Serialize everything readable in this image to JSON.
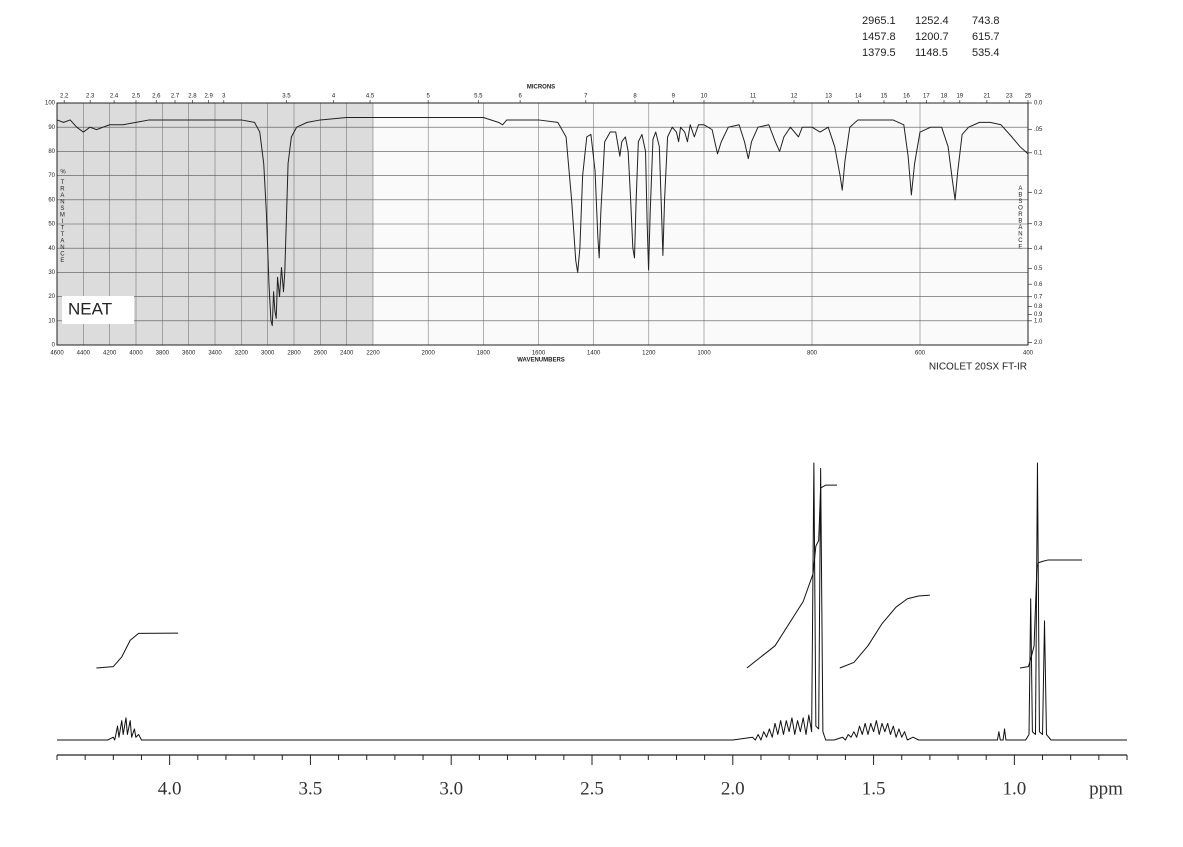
{
  "chart_data": [
    {
      "type": "line",
      "peak_table": [
        [
          2965.1,
          1252.4,
          743.8
        ],
        [
          1457.8,
          1200.7,
          615.7
        ],
        [
          1379.5,
          1148.5,
          535.4
        ]
      ],
      "x2label": "MICRONS",
      "xlabel": "WAVENUMBERS",
      "ylabel_unit": "%",
      "ylabel": "TRANSMITTANCE",
      "y2label": "ABSORBANCE",
      "annotation": "NEAT",
      "instrument": "NICOLET 20SX FT-IR",
      "xlim": [
        4600,
        400
      ],
      "x_scale_breaks": [
        2200,
        1000
      ],
      "xticks": [
        4600,
        4400,
        4200,
        4000,
        3800,
        3600,
        3400,
        3200,
        3000,
        2800,
        2600,
        2400,
        2200,
        2000,
        1800,
        1600,
        1400,
        1200,
        1000,
        800,
        600,
        400
      ],
      "x2ticks": [
        2.2,
        2.3,
        2.4,
        2.5,
        2.6,
        2.7,
        2.8,
        2.9,
        3,
        3.5,
        4,
        4.5,
        5,
        5.5,
        6,
        7,
        8,
        9,
        10,
        11,
        12,
        13,
        14,
        15,
        16,
        17,
        18,
        19,
        21,
        23,
        25
      ],
      "ylim": [
        0,
        100
      ],
      "yticks": [
        0,
        10,
        20,
        30,
        40,
        50,
        60,
        70,
        80,
        90,
        100
      ],
      "y2ticks": [
        {
          "value": 0,
          "label": "0.0"
        },
        {
          "value": 0.05,
          "label": ".05"
        },
        0.1,
        0.2,
        0.3,
        0.4,
        0.5,
        0.6,
        0.7,
        0.8,
        0.9,
        {
          "value": 1,
          "label": "1.0"
        },
        {
          "value": 2,
          "label": "2.0"
        }
      ],
      "grid": true,
      "series": [
        {
          "color": "#222",
          "x": [
            4600,
            4550,
            4500,
            4450,
            4400,
            4350,
            4300,
            4200,
            4100,
            4000,
            3900,
            3800,
            3600,
            3400,
            3200,
            3100,
            3060,
            3030,
            3010,
            2990,
            2975,
            2965,
            2955,
            2945,
            2935,
            2925,
            2910,
            2895,
            2880,
            2870,
            2860,
            2845,
            2820,
            2780,
            2700,
            2600,
            2400,
            2200,
            2000,
            1800,
            1745,
            1730,
            1715,
            1600,
            1530,
            1500,
            1480,
            1465,
            1458,
            1450,
            1440,
            1425,
            1410,
            1395,
            1385,
            1380,
            1374,
            1360,
            1340,
            1320,
            1305,
            1298,
            1285,
            1275,
            1266,
            1258,
            1252,
            1246,
            1238,
            1225,
            1212,
            1206,
            1201,
            1195,
            1185,
            1175,
            1162,
            1154,
            1149,
            1143,
            1132,
            1115,
            1100,
            1092,
            1085,
            1070,
            1060,
            1050,
            1035,
            1020,
            1000,
            985,
            975,
            968,
            955,
            935,
            925,
            918,
            912,
            900,
            880,
            868,
            860,
            852,
            840,
            825,
            818,
            800,
            785,
            770,
            758,
            748,
            744,
            739,
            730,
            715,
            690,
            650,
            630,
            622,
            616,
            610,
            600,
            580,
            560,
            548,
            540,
            535,
            530,
            522,
            510,
            490,
            470,
            450,
            430,
            415,
            400
          ],
          "values": [
            93,
            92,
            93,
            90,
            88,
            90,
            89,
            91,
            91,
            92,
            93,
            93,
            93,
            93,
            93,
            92,
            88,
            75,
            55,
            25,
            10,
            8,
            22,
            14,
            11,
            28,
            20,
            32,
            22,
            30,
            48,
            75,
            86,
            90,
            92,
            93,
            94,
            94,
            94,
            94,
            92,
            91,
            93,
            93,
            92,
            86,
            60,
            35,
            30,
            40,
            70,
            86,
            87,
            72,
            45,
            36,
            55,
            84,
            88,
            88,
            78,
            84,
            86,
            80,
            60,
            40,
            36,
            60,
            84,
            87,
            80,
            50,
            31,
            55,
            85,
            88,
            82,
            55,
            37,
            60,
            86,
            90,
            88,
            84,
            90,
            88,
            84,
            91,
            86,
            91,
            91,
            89,
            79,
            84,
            90,
            91,
            84,
            77,
            84,
            90,
            91,
            84,
            80,
            86,
            90,
            86,
            90,
            90,
            88,
            90,
            82,
            70,
            64,
            76,
            90,
            93,
            93,
            93,
            91,
            78,
            62,
            75,
            88,
            90,
            90,
            82,
            68,
            60,
            72,
            87,
            90,
            92,
            92,
            91,
            86,
            82,
            79
          ]
        }
      ]
    },
    {
      "type": "line",
      "xlabel": "ppm",
      "xlim": [
        4.4,
        0.6
      ],
      "xticks": [
        {
          "value": 4,
          "label": "4.0"
        },
        {
          "value": 3.5,
          "label": "3.5"
        },
        {
          "value": 3,
          "label": "3.0"
        },
        {
          "value": 2.5,
          "label": "2.5"
        },
        {
          "value": 2,
          "label": "2.0"
        },
        {
          "value": 1.5,
          "label": "1.5"
        },
        {
          "value": 1,
          "label": "1.0"
        }
      ],
      "xminorticks": [
        4.4,
        4.3,
        4.2,
        4.1,
        3.9,
        3.8,
        3.7,
        3.6,
        3.4,
        3.3,
        3.2,
        3.1,
        2.9,
        2.8,
        2.7,
        2.6,
        2.4,
        2.3,
        2.2,
        2.1,
        1.9,
        1.8,
        1.7,
        1.6,
        1.4,
        1.3,
        1.2,
        1.1,
        0.9,
        0.8,
        0.7,
        0.6
      ],
      "ylim": [
        0,
        100
      ],
      "series": [
        {
          "color": "#111",
          "x": [
            4.4,
            4.22,
            4.2,
            4.195,
            4.185,
            4.18,
            4.17,
            4.165,
            4.155,
            4.15,
            4.14,
            4.135,
            4.125,
            4.12,
            4.11,
            4.1,
            4.09,
            2.0,
            1.93,
            1.92,
            1.91,
            1.9,
            1.89,
            1.88,
            1.87,
            1.86,
            1.85,
            1.84,
            1.83,
            1.82,
            1.81,
            1.8,
            1.79,
            1.78,
            1.77,
            1.76,
            1.75,
            1.74,
            1.73,
            1.72,
            1.712,
            1.705,
            1.695,
            1.688,
            1.68,
            1.67,
            1.64,
            1.61,
            1.6,
            1.59,
            1.58,
            1.57,
            1.56,
            1.55,
            1.54,
            1.53,
            1.52,
            1.51,
            1.5,
            1.49,
            1.48,
            1.47,
            1.46,
            1.45,
            1.44,
            1.43,
            1.42,
            1.41,
            1.4,
            1.39,
            1.38,
            1.36,
            1.34,
            1.08,
            1.06,
            1.055,
            1.05,
            1.04,
            1.035,
            1.03,
            0.96,
            0.948,
            0.942,
            0.936,
            0.925,
            0.918,
            0.911,
            0.9,
            0.893,
            0.886,
            0.87,
            0.6
          ],
          "values": [
            0,
            0,
            1,
            0,
            5,
            1,
            7,
            2,
            8,
            2,
            7,
            1,
            4,
            1,
            2,
            0,
            0,
            0,
            1,
            0,
            2,
            0,
            3,
            1,
            4,
            1,
            6,
            2,
            7,
            2,
            7,
            3,
            8,
            2,
            7,
            3,
            8,
            2,
            9,
            3,
            100,
            5,
            4,
            98,
            3,
            0,
            0,
            1,
            0,
            2,
            1,
            3,
            1,
            5,
            2,
            6,
            2,
            6,
            3,
            7,
            2,
            6,
            3,
            6,
            2,
            5,
            1,
            4,
            1,
            3,
            0,
            1,
            0,
            0,
            0,
            3,
            0,
            0,
            4,
            0,
            0,
            2,
            51,
            3,
            2,
            100,
            3,
            2,
            43,
            2,
            0,
            0
          ]
        },
        {
          "color": "#111",
          "x": [
            4.26,
            4.2,
            4.17,
            4.14,
            4.11,
            3.97
          ],
          "values": [
            26,
            26.5,
            30,
            36,
            38.5,
            38.6
          ]
        },
        {
          "color": "#111",
          "x": [
            1.95,
            1.85,
            1.75,
            1.715,
            1.705,
            1.695,
            1.688,
            1.67,
            1.63
          ],
          "values": [
            26,
            34,
            50,
            60,
            70,
            72,
            91,
            92,
            92
          ]
        },
        {
          "color": "#111",
          "x": [
            1.62,
            1.57,
            1.52,
            1.47,
            1.42,
            1.38,
            1.34,
            1.3
          ],
          "values": [
            26,
            28,
            34,
            42,
            48,
            51,
            52,
            52.3
          ]
        },
        {
          "color": "#111",
          "x": [
            0.98,
            0.95,
            0.94,
            0.93,
            0.92,
            0.915,
            0.9,
            0.88,
            0.76
          ],
          "values": [
            26,
            26.5,
            30,
            34,
            62,
            64,
            64.5,
            65,
            65
          ]
        }
      ]
    }
  ]
}
